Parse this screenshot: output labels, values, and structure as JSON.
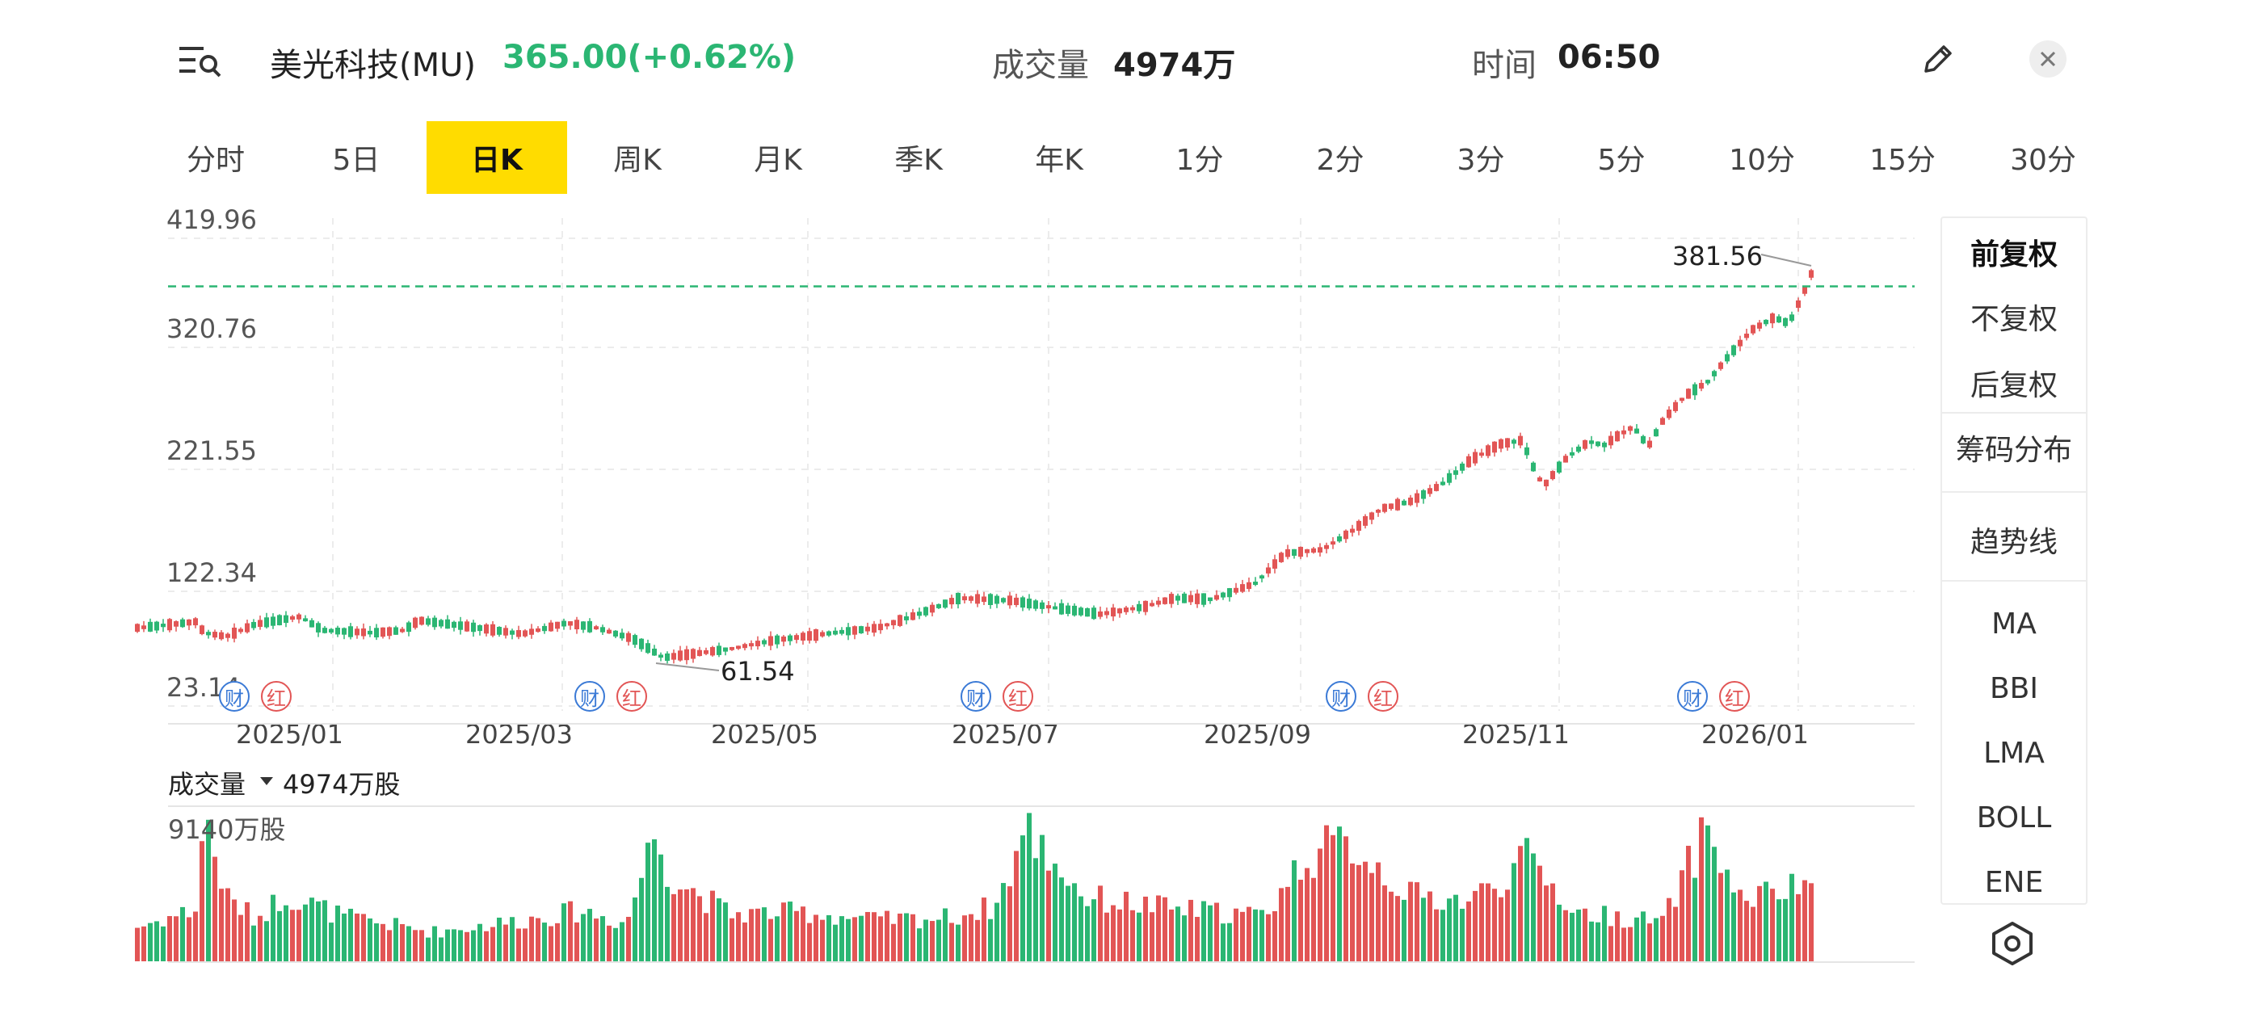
{
  "header": {
    "stock_name": "美光科技(MU)",
    "price_change": "365.00(+0.62%)",
    "volume_label": "成交量",
    "volume_value": "4974万",
    "time_label": "时间",
    "time_value": "06:50"
  },
  "tabs": [
    "分时",
    "5日",
    "日K",
    "周K",
    "月K",
    "季K",
    "年K",
    "1分",
    "2分",
    "3分",
    "5分",
    "10分",
    "15分",
    "30分"
  ],
  "active_tab": 2,
  "side_panel": {
    "items": [
      "前复权",
      "不复权",
      "后复权",
      "筹码分布",
      "趋势线",
      "MA",
      "BBI",
      "LMA",
      "BOLL",
      "ENE"
    ]
  },
  "colors": {
    "up": "#e25555",
    "down": "#2bb673",
    "accent": "#ffdc00",
    "current_line": "#2bb673"
  },
  "chart_data": {
    "type": "candlestick",
    "price_axis_ticks": [
      "419.96",
      "320.76",
      "221.55",
      "122.34",
      "23.14"
    ],
    "price_axis_values": [
      419.96,
      320.76,
      221.55,
      122.34,
      23.14
    ],
    "date_ticks": [
      "2025/01",
      "2025/03",
      "2025/05",
      "2025/07",
      "2025/09",
      "2025/11",
      "2026/01"
    ],
    "current_price": 365.0,
    "annotations": {
      "high_label": "381.56",
      "high_value": 381.56,
      "low_label": "61.54",
      "low_value": 61.54
    },
    "event_markers": [
      {
        "date_pos": 0.08,
        "labels": [
          "财",
          "红"
        ]
      },
      {
        "date_pos": 0.33,
        "labels": [
          "财",
          "红"
        ]
      },
      {
        "date_pos": 0.57,
        "labels": [
          "财",
          "红"
        ]
      },
      {
        "date_pos": 0.81,
        "labels": [
          "财",
          "红"
        ]
      },
      {
        "date_pos": 0.97,
        "labels": [
          "财",
          "红"
        ]
      }
    ],
    "volume_label": "成交量",
    "volume_value_label": "4974万股",
    "volume_max_label": "9140万股",
    "volume_max": 9140,
    "price_path": [
      [
        0.0,
        90
      ],
      [
        0.01,
        91
      ],
      [
        0.04,
        95
      ],
      [
        0.045,
        86
      ],
      [
        0.06,
        83
      ],
      [
        0.08,
        93
      ],
      [
        0.11,
        99
      ],
      [
        0.125,
        88
      ],
      [
        0.16,
        86
      ],
      [
        0.18,
        88
      ],
      [
        0.19,
        96
      ],
      [
        0.23,
        90
      ],
      [
        0.26,
        85
      ],
      [
        0.29,
        94
      ],
      [
        0.31,
        90
      ],
      [
        0.335,
        81
      ],
      [
        0.355,
        66
      ],
      [
        0.375,
        69
      ],
      [
        0.4,
        73
      ],
      [
        0.43,
        80
      ],
      [
        0.47,
        86
      ],
      [
        0.5,
        90
      ],
      [
        0.525,
        100
      ],
      [
        0.555,
        114
      ],
      [
        0.59,
        112
      ],
      [
        0.62,
        106
      ],
      [
        0.65,
        101
      ],
      [
        0.68,
        107
      ],
      [
        0.7,
        114
      ],
      [
        0.725,
        113
      ],
      [
        0.755,
        126
      ],
      [
        0.775,
        150
      ],
      [
        0.8,
        153
      ],
      [
        0.82,
        168
      ],
      [
        0.84,
        186
      ],
      [
        0.86,
        192
      ],
      [
        0.88,
        205
      ],
      [
        0.9,
        225
      ],
      [
        0.92,
        238
      ],
      [
        0.935,
        241
      ],
      [
        0.945,
        212
      ],
      [
        0.95,
        205
      ],
      [
        0.965,
        227
      ],
      [
        0.98,
        240
      ],
      [
        0.99,
        237
      ],
      [
        1.0,
        245
      ],
      [
        1.01,
        252
      ],
      [
        1.02,
        236
      ],
      [
        1.03,
        257
      ],
      [
        1.045,
        277
      ],
      [
        1.06,
        288
      ],
      [
        1.075,
        310
      ],
      [
        1.09,
        330
      ],
      [
        1.105,
        340
      ],
      [
        1.115,
        335
      ],
      [
        1.125,
        360
      ],
      [
        1.13,
        375
      ]
    ],
    "volume_path": [
      [
        0.0,
        2100
      ],
      [
        0.04,
        3200
      ],
      [
        0.045,
        9140
      ],
      [
        0.06,
        3900
      ],
      [
        0.08,
        2600
      ],
      [
        0.1,
        4100
      ],
      [
        0.14,
        2700
      ],
      [
        0.2,
        1800
      ],
      [
        0.26,
        2500
      ],
      [
        0.3,
        3100
      ],
      [
        0.33,
        2300
      ],
      [
        0.35,
        8100
      ],
      [
        0.36,
        5200
      ],
      [
        0.4,
        2900
      ],
      [
        0.45,
        3000
      ],
      [
        0.5,
        2500
      ],
      [
        0.55,
        2700
      ],
      [
        0.58,
        3400
      ],
      [
        0.6,
        8100
      ],
      [
        0.64,
        3900
      ],
      [
        0.7,
        3200
      ],
      [
        0.76,
        2800
      ],
      [
        0.79,
        6500
      ],
      [
        0.82,
        7200
      ],
      [
        0.86,
        4000
      ],
      [
        0.9,
        3700
      ],
      [
        0.94,
        6300
      ],
      [
        0.97,
        3000
      ],
      [
        1.0,
        2700
      ],
      [
        1.03,
        2400
      ],
      [
        1.06,
        8300
      ],
      [
        1.08,
        3800
      ],
      [
        1.12,
        4400
      ],
      [
        1.14,
        6200
      ]
    ]
  }
}
